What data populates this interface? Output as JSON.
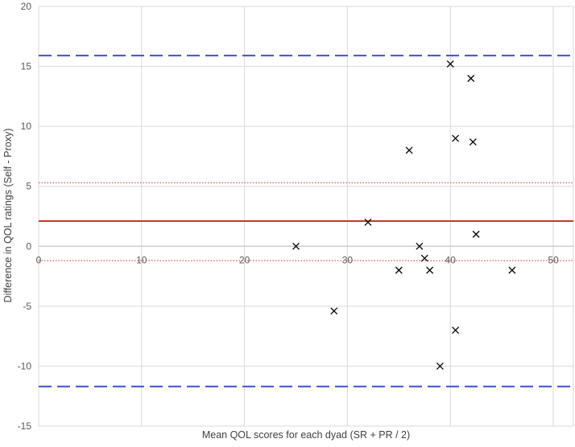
{
  "chart_data": {
    "type": "scatter",
    "xlabel": "Mean QOL scores for each dyad (SR + PR / 2)",
    "ylabel": "Difference in QOL ratings  (Self - Proxy)",
    "xlim": [
      0,
      52
    ],
    "ylim": [
      -15,
      20
    ],
    "x_ticks": [
      0,
      10,
      20,
      30,
      40,
      50
    ],
    "y_ticks": [
      -15,
      -10,
      -5,
      0,
      5,
      10,
      15,
      20
    ],
    "grid": true,
    "marker": "x",
    "points": [
      {
        "x": 25.0,
        "y": 0
      },
      {
        "x": 28.7,
        "y": -5.4
      },
      {
        "x": 32.0,
        "y": 2
      },
      {
        "x": 35.0,
        "y": -2
      },
      {
        "x": 36.0,
        "y": 8
      },
      {
        "x": 37.0,
        "y": 0
      },
      {
        "x": 37.5,
        "y": -1
      },
      {
        "x": 38.0,
        "y": -2
      },
      {
        "x": 39.0,
        "y": -10
      },
      {
        "x": 40.0,
        "y": 15.2
      },
      {
        "x": 40.5,
        "y": 9
      },
      {
        "x": 40.5,
        "y": -7
      },
      {
        "x": 42.0,
        "y": 14
      },
      {
        "x": 42.2,
        "y": 8.7
      },
      {
        "x": 42.5,
        "y": 1
      },
      {
        "x": 46.0,
        "y": -2
      }
    ],
    "reference_lines": [
      {
        "kind": "mean",
        "y": 2.1,
        "style": "solid",
        "color": "#c0392b"
      },
      {
        "kind": "upper-limit",
        "y": 15.9,
        "style": "dashed",
        "color": "#3f51c8"
      },
      {
        "kind": "lower-limit",
        "y": -11.7,
        "style": "dashed",
        "color": "#3f51c8"
      },
      {
        "kind": "upper-ci",
        "y": 5.3,
        "style": "dotted",
        "color": "#c0392b"
      },
      {
        "kind": "lower-ci",
        "y": -1.2,
        "style": "dotted",
        "color": "#c0392b"
      }
    ],
    "colors": {
      "grid": "#d9d9d9",
      "marker": "#000000",
      "axis_text": "#595959"
    }
  }
}
